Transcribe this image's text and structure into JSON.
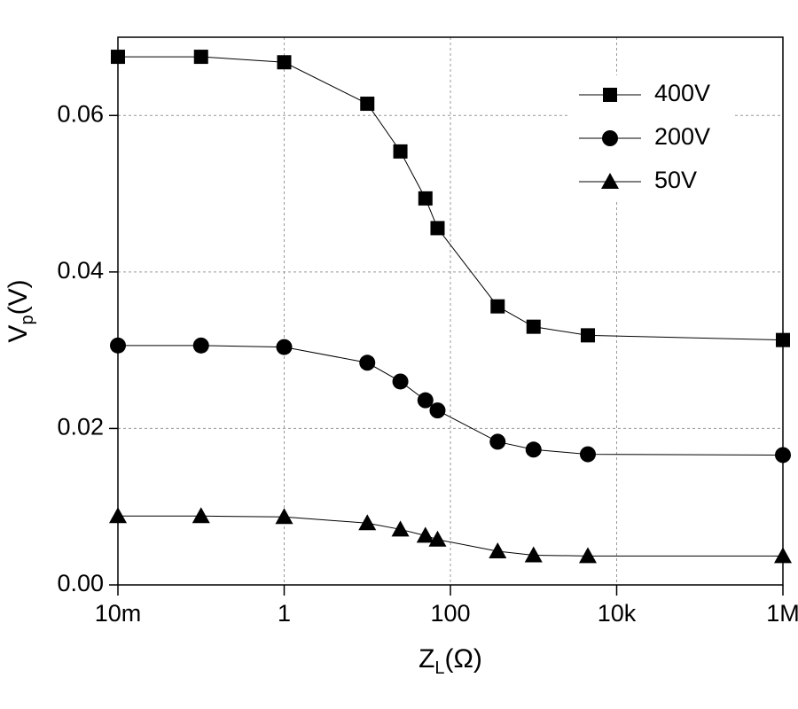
{
  "chart_data": {
    "type": "line",
    "xlabel": [
      "Z",
      "L",
      "(Ω)"
    ],
    "ylabel": [
      "V",
      "p",
      "(V)"
    ],
    "x": [
      0.01,
      0.1,
      1,
      10,
      25,
      50,
      70,
      370,
      1000,
      4500,
      1000000
    ],
    "series": [
      {
        "name": "400V",
        "color": "#000000",
        "marker": "square",
        "values": [
          0.0675,
          0.0675,
          0.0668,
          0.0615,
          0.0554,
          0.0494,
          0.0456,
          0.0356,
          0.033,
          0.0319,
          0.0313
        ]
      },
      {
        "name": "200V",
        "color": "#000000",
        "marker": "circle",
        "values": [
          0.0306,
          0.0306,
          0.0304,
          0.0284,
          0.026,
          0.0236,
          0.0223,
          0.0183,
          0.0173,
          0.0167,
          0.0166
        ]
      },
      {
        "name": "50V",
        "color": "#000000",
        "marker": "triangle",
        "values": [
          0.0088,
          0.0088,
          0.0087,
          0.0079,
          0.0071,
          0.0063,
          0.0058,
          0.0043,
          0.0038,
          0.0037,
          0.0037
        ]
      }
    ],
    "xscale": "log",
    "xlim": [
      0.01,
      1000000
    ],
    "xticks": [
      {
        "value": 0.01,
        "label": "10m"
      },
      1,
      100,
      {
        "value": 10000,
        "label": "10k"
      },
      {
        "value": 1000000,
        "label": "1M"
      }
    ],
    "ylim": [
      0,
      0.07
    ],
    "yticks": [
      {
        "value": 0,
        "label": "0.00"
      },
      0.02,
      0.04,
      0.06
    ],
    "grid": true,
    "legend": "upper right"
  }
}
